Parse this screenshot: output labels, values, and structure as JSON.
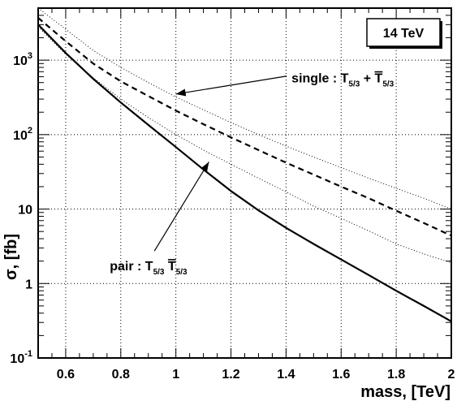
{
  "chart_data": {
    "type": "line",
    "title": "",
    "xlabel": "mass,   [TeV]",
    "ylabel": "σ,   [fb]",
    "xlim": [
      0.5,
      2.0
    ],
    "ylim": [
      0.1,
      5000
    ],
    "y_scale": "log",
    "grid": true,
    "x_ticks": [
      0.6,
      0.8,
      1.0,
      1.2,
      1.4,
      1.6,
      1.8,
      2.0
    ],
    "x_tick_labels": [
      "0.6",
      "0.8",
      "1",
      "1.2",
      "1.4",
      "1.6",
      "1.8",
      "2"
    ],
    "y_tick_labels": [
      {
        "value": 0.1,
        "base": "10",
        "exp": "-1"
      },
      {
        "value": 1,
        "base": "1",
        "exp": ""
      },
      {
        "value": 10,
        "base": "10",
        "exp": ""
      },
      {
        "value": 100,
        "base": "10",
        "exp": "2"
      },
      {
        "value": 1000,
        "base": "10",
        "exp": "3"
      }
    ],
    "energy_label": "14 TeV",
    "series": [
      {
        "style": "solid",
        "x": [
          0.5,
          0.6,
          0.7,
          0.8,
          0.9,
          1.0,
          1.1,
          1.2,
          1.3,
          1.4,
          1.5,
          1.6,
          1.7,
          1.8,
          1.9,
          2.0
        ],
        "values": [
          3000,
          1250,
          560,
          270,
          135,
          68,
          34,
          17.5,
          9.6,
          5.6,
          3.4,
          2.1,
          1.3,
          0.8,
          0.5,
          0.31
        ]
      },
      {
        "style": "dashed",
        "x": [
          0.5,
          0.6,
          0.7,
          0.8,
          0.9,
          1.0,
          1.1,
          1.2,
          1.3,
          1.4,
          1.5,
          1.6,
          1.7,
          1.8,
          1.9,
          2.0
        ],
        "values": [
          3700,
          1800,
          900,
          520,
          330,
          210,
          138,
          92,
          62,
          42,
          29,
          20,
          14,
          9.5,
          6.5,
          4.4
        ]
      },
      {
        "style": "dotted",
        "x": [
          0.5,
          0.6,
          0.7,
          0.8,
          0.9,
          1.0,
          1.1,
          1.2,
          1.3,
          1.4,
          1.5,
          1.6,
          1.7,
          1.8,
          1.9,
          2.0
        ],
        "values": [
          5000,
          2600,
          1350,
          800,
          500,
          320,
          215,
          145,
          100,
          70,
          50,
          36,
          26,
          19,
          14,
          10
        ]
      },
      {
        "style": "dotted",
        "x": [
          0.5,
          0.6,
          0.7,
          0.8,
          0.9,
          1.0,
          1.1,
          1.2,
          1.3,
          1.4,
          1.5,
          1.6,
          1.7,
          1.8,
          1.9,
          2.0
        ],
        "values": [
          2800,
          1200,
          580,
          300,
          170,
          100,
          62,
          40,
          26,
          17,
          11,
          7.5,
          5.1,
          3.4,
          2.5,
          1.9
        ]
      }
    ],
    "annotations": [
      {
        "main": "single : T",
        "sub1": "5/3",
        "plus": " + ",
        "bar_letter": "T",
        "sub2": "5/3",
        "arrow_to": {
          "x": 1.0,
          "y": 350
        },
        "text_at": {
          "x": 1.42,
          "y": 500
        }
      },
      {
        "main": "pair : T",
        "sub1": "5/3",
        "plus": "",
        "bar_letter": "T",
        "sub2": "5/3",
        "arrow_to": {
          "x": 1.12,
          "y": 43
        },
        "text_at": {
          "x": 0.76,
          "y": 1.5
        }
      }
    ]
  }
}
